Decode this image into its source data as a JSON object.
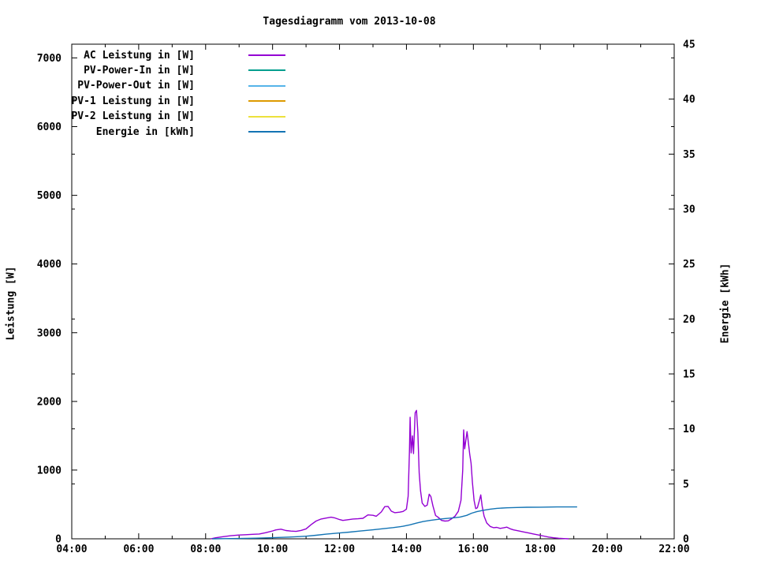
{
  "title": "Tagesdiagramm vom 2013-10-08",
  "colors": {
    "ac": "#9400d3",
    "pv_in": "#009e8e",
    "pv_out": "#56b4e9",
    "pv1": "#dd9a00",
    "pv2": "#ece13c",
    "energie": "#1374b4",
    "axis": "#000000",
    "background": "#ffffff"
  },
  "axes": {
    "x": {
      "start_hour": 4,
      "end_hour": 22,
      "tick_every_hours": 1,
      "label_every_hours": 2,
      "labels": [
        "04:00",
        "06:00",
        "08:00",
        "10:00",
        "12:00",
        "14:00",
        "16:00",
        "18:00",
        "20:00",
        "22:00"
      ]
    },
    "y_left": {
      "label": "Leistung [W]",
      "min": 0,
      "max": 7200,
      "tick_step": 1000,
      "tick_labels": [
        "0",
        "1000",
        "2000",
        "3000",
        "4000",
        "5000",
        "6000",
        "7000"
      ]
    },
    "y_right": {
      "label": "Energie [kWh]",
      "min": 0,
      "max": 45,
      "tick_step": 5,
      "tick_labels": [
        "0",
        "5",
        "10",
        "15",
        "20",
        "25",
        "30",
        "35",
        "40",
        "45"
      ]
    }
  },
  "legend": {
    "items": [
      {
        "label": "AC Leistung in [W]",
        "color_key": "ac"
      },
      {
        "label": "PV-Power-In in [W]",
        "color_key": "pv_in"
      },
      {
        "label": "PV-Power-Out in [W]",
        "color_key": "pv_out"
      },
      {
        "label": "PV-1 Leistung in [W]",
        "color_key": "pv1"
      },
      {
        "label": "PV-2 Leistung in [W]",
        "color_key": "pv2"
      },
      {
        "label": "Energie in [kWh]",
        "color_key": "energie"
      }
    ]
  },
  "chart_data": {
    "type": "line",
    "title": "Tagesdiagramm vom 2013-10-08",
    "xlabel": "",
    "x_unit": "time of day, decimal hours",
    "x_range": [
      4,
      22
    ],
    "y_left": {
      "label": "Leistung [W]",
      "range": [
        0,
        7200
      ]
    },
    "y_right": {
      "label": "Energie [kWh]",
      "range": [
        0,
        45
      ]
    },
    "grid": false,
    "legend_position": "top-left-inside",
    "series": [
      {
        "name": "AC Leistung in [W]",
        "color_key": "ac",
        "axis": "left",
        "points": [
          [
            8.15,
            0
          ],
          [
            8.3,
            15
          ],
          [
            8.5,
            30
          ],
          [
            8.75,
            45
          ],
          [
            9.0,
            55
          ],
          [
            9.2,
            60
          ],
          [
            9.4,
            65
          ],
          [
            9.6,
            70
          ],
          [
            9.8,
            90
          ],
          [
            10.0,
            115
          ],
          [
            10.1,
            130
          ],
          [
            10.25,
            140
          ],
          [
            10.4,
            120
          ],
          [
            10.55,
            112
          ],
          [
            10.7,
            108
          ],
          [
            10.85,
            122
          ],
          [
            11.0,
            145
          ],
          [
            11.15,
            205
          ],
          [
            11.3,
            258
          ],
          [
            11.45,
            288
          ],
          [
            11.6,
            302
          ],
          [
            11.75,
            315
          ],
          [
            11.85,
            305
          ],
          [
            12.0,
            280
          ],
          [
            12.1,
            268
          ],
          [
            12.25,
            278
          ],
          [
            12.4,
            288
          ],
          [
            12.55,
            292
          ],
          [
            12.7,
            298
          ],
          [
            12.85,
            348
          ],
          [
            13.0,
            342
          ],
          [
            13.1,
            328
          ],
          [
            13.25,
            392
          ],
          [
            13.35,
            468
          ],
          [
            13.45,
            472
          ],
          [
            13.55,
            402
          ],
          [
            13.65,
            380
          ],
          [
            13.8,
            388
          ],
          [
            13.9,
            398
          ],
          [
            14.0,
            432
          ],
          [
            14.05,
            620
          ],
          [
            14.09,
            1300
          ],
          [
            14.11,
            1770
          ],
          [
            14.14,
            1250
          ],
          [
            14.18,
            1500
          ],
          [
            14.21,
            1240
          ],
          [
            14.26,
            1835
          ],
          [
            14.3,
            1870
          ],
          [
            14.34,
            1550
          ],
          [
            14.38,
            960
          ],
          [
            14.42,
            700
          ],
          [
            14.47,
            520
          ],
          [
            14.55,
            472
          ],
          [
            14.62,
            490
          ],
          [
            14.68,
            650
          ],
          [
            14.73,
            615
          ],
          [
            14.79,
            480
          ],
          [
            14.87,
            340
          ],
          [
            14.95,
            312
          ],
          [
            15.05,
            268
          ],
          [
            15.15,
            258
          ],
          [
            15.25,
            262
          ],
          [
            15.35,
            292
          ],
          [
            15.45,
            330
          ],
          [
            15.55,
            400
          ],
          [
            15.63,
            560
          ],
          [
            15.68,
            1000
          ],
          [
            15.71,
            1585
          ],
          [
            15.74,
            1310
          ],
          [
            15.78,
            1450
          ],
          [
            15.81,
            1560
          ],
          [
            15.85,
            1400
          ],
          [
            15.89,
            1230
          ],
          [
            15.93,
            1100
          ],
          [
            15.97,
            820
          ],
          [
            16.02,
            560
          ],
          [
            16.07,
            440
          ],
          [
            16.12,
            452
          ],
          [
            16.18,
            560
          ],
          [
            16.22,
            640
          ],
          [
            16.26,
            480
          ],
          [
            16.32,
            330
          ],
          [
            16.4,
            230
          ],
          [
            16.5,
            180
          ],
          [
            16.6,
            162
          ],
          [
            16.7,
            166
          ],
          [
            16.8,
            152
          ],
          [
            16.9,
            160
          ],
          [
            17.0,
            170
          ],
          [
            17.1,
            146
          ],
          [
            17.2,
            130
          ],
          [
            17.35,
            116
          ],
          [
            17.5,
            100
          ],
          [
            17.65,
            85
          ],
          [
            17.8,
            70
          ],
          [
            17.95,
            55
          ],
          [
            18.1,
            40
          ],
          [
            18.25,
            25
          ],
          [
            18.4,
            15
          ],
          [
            18.55,
            8
          ],
          [
            18.7,
            3
          ],
          [
            18.85,
            0
          ]
        ]
      },
      {
        "name": "PV-Power-In in [W]",
        "color_key": "pv_in",
        "axis": "left",
        "points": [],
        "note": "no visible data on this day"
      },
      {
        "name": "PV-Power-Out in [W]",
        "color_key": "pv_out",
        "axis": "left",
        "points": [],
        "note": "no visible data on this day"
      },
      {
        "name": "PV-1 Leistung in [W]",
        "color_key": "pv1",
        "axis": "left",
        "points": [],
        "note": "no visible data on this day"
      },
      {
        "name": "PV-2 Leistung in [W]",
        "color_key": "pv2",
        "axis": "left",
        "points": [],
        "note": "no visible data on this day"
      },
      {
        "name": "Energie in [kWh]",
        "color_key": "energie",
        "axis": "right",
        "points": [
          [
            8.2,
            0
          ],
          [
            9.0,
            0.03
          ],
          [
            9.5,
            0.06
          ],
          [
            10.0,
            0.1
          ],
          [
            10.5,
            0.16
          ],
          [
            11.0,
            0.24
          ],
          [
            11.3,
            0.32
          ],
          [
            11.6,
            0.42
          ],
          [
            12.0,
            0.53
          ],
          [
            12.3,
            0.61
          ],
          [
            12.6,
            0.7
          ],
          [
            13.0,
            0.82
          ],
          [
            13.3,
            0.92
          ],
          [
            13.6,
            1.02
          ],
          [
            13.9,
            1.14
          ],
          [
            14.1,
            1.27
          ],
          [
            14.3,
            1.43
          ],
          [
            14.5,
            1.57
          ],
          [
            14.7,
            1.67
          ],
          [
            14.9,
            1.75
          ],
          [
            15.1,
            1.82
          ],
          [
            15.4,
            1.91
          ],
          [
            15.6,
            1.98
          ],
          [
            15.8,
            2.13
          ],
          [
            15.95,
            2.33
          ],
          [
            16.1,
            2.47
          ],
          [
            16.3,
            2.6
          ],
          [
            16.5,
            2.7
          ],
          [
            16.7,
            2.77
          ],
          [
            17.0,
            2.82
          ],
          [
            17.3,
            2.85
          ],
          [
            17.6,
            2.87
          ],
          [
            18.0,
            2.88
          ],
          [
            18.5,
            2.9
          ],
          [
            19.1,
            2.9
          ]
        ]
      }
    ]
  }
}
